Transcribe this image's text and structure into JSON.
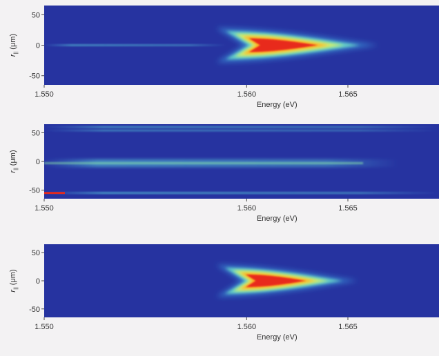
{
  "figure": {
    "background": "#f3f2f3",
    "plot_background": "#2633a0"
  },
  "chart_data": [
    {
      "type": "heatmap",
      "xlabel": "Energy (eV)",
      "ylabel": {
        "main": "r",
        "sub": "||",
        "unit": "(μm)"
      },
      "xlim": [
        1.55,
        1.5695
      ],
      "ylim": [
        -65,
        65
      ],
      "x_ticks": [
        "1.550",
        "1.560",
        "1.565"
      ],
      "x_tick_values": [
        1.55,
        1.56,
        1.565
      ],
      "y_ticks": [
        "50",
        "0",
        "-50"
      ],
      "y_tick_values": [
        50,
        0,
        -50
      ],
      "features": [
        {
          "kind": "arrow-blob",
          "x_start": 1.5585,
          "x_peak": 1.5615,
          "x_end": 1.5665,
          "y_center": 0,
          "half_width": 28
        },
        {
          "kind": "line",
          "y": 0,
          "x_start": 1.55,
          "x_end": 1.559,
          "intensity": 0.35
        }
      ]
    },
    {
      "type": "heatmap",
      "xlabel": "Energy (eV)",
      "ylabel": {
        "main": "r",
        "sub": "||",
        "unit": "(μm)"
      },
      "xlim": [
        1.55,
        1.5695
      ],
      "ylim": [
        -65,
        65
      ],
      "x_ticks": [
        "1.550",
        "1.560",
        "1.565"
      ],
      "x_tick_values": [
        1.55,
        1.56,
        1.565
      ],
      "y_ticks": [
        "50",
        "0",
        "-50"
      ],
      "y_tick_values": [
        50,
        0,
        -50
      ],
      "features": [
        {
          "kind": "band",
          "y": -3,
          "x_start": 1.55,
          "x_end": 1.5675,
          "half_width": 7,
          "intensity": 0.45
        },
        {
          "kind": "line",
          "y": 60,
          "x_start": 1.55,
          "x_end": 1.5695,
          "intensity": 0.35
        },
        {
          "kind": "line",
          "y": 54,
          "x_start": 1.55,
          "x_end": 1.5695,
          "intensity": 0.3
        },
        {
          "kind": "line",
          "y": -55,
          "x_start": 1.55,
          "x_end": 1.5695,
          "intensity": 0.4
        },
        {
          "kind": "hot-line",
          "y": -55,
          "x_start": 1.55,
          "x_end": 1.5502
        }
      ]
    },
    {
      "type": "heatmap",
      "xlabel": "Energy (eV)",
      "ylabel": {
        "main": "r",
        "sub": "||",
        "unit": "(μm)"
      },
      "xlim": [
        1.55,
        1.5695
      ],
      "ylim": [
        -65,
        65
      ],
      "x_ticks": [
        "1.550",
        "1.560",
        "1.565"
      ],
      "x_tick_values": [
        1.55,
        1.56,
        1.565
      ],
      "y_ticks": [
        "50",
        "0",
        "-50"
      ],
      "y_tick_values": [
        50,
        0,
        -50
      ],
      "features": [
        {
          "kind": "arrow-blob",
          "x_start": 1.5585,
          "x_peak": 1.5612,
          "x_end": 1.5655,
          "y_center": 0,
          "half_width": 28
        }
      ]
    }
  ]
}
